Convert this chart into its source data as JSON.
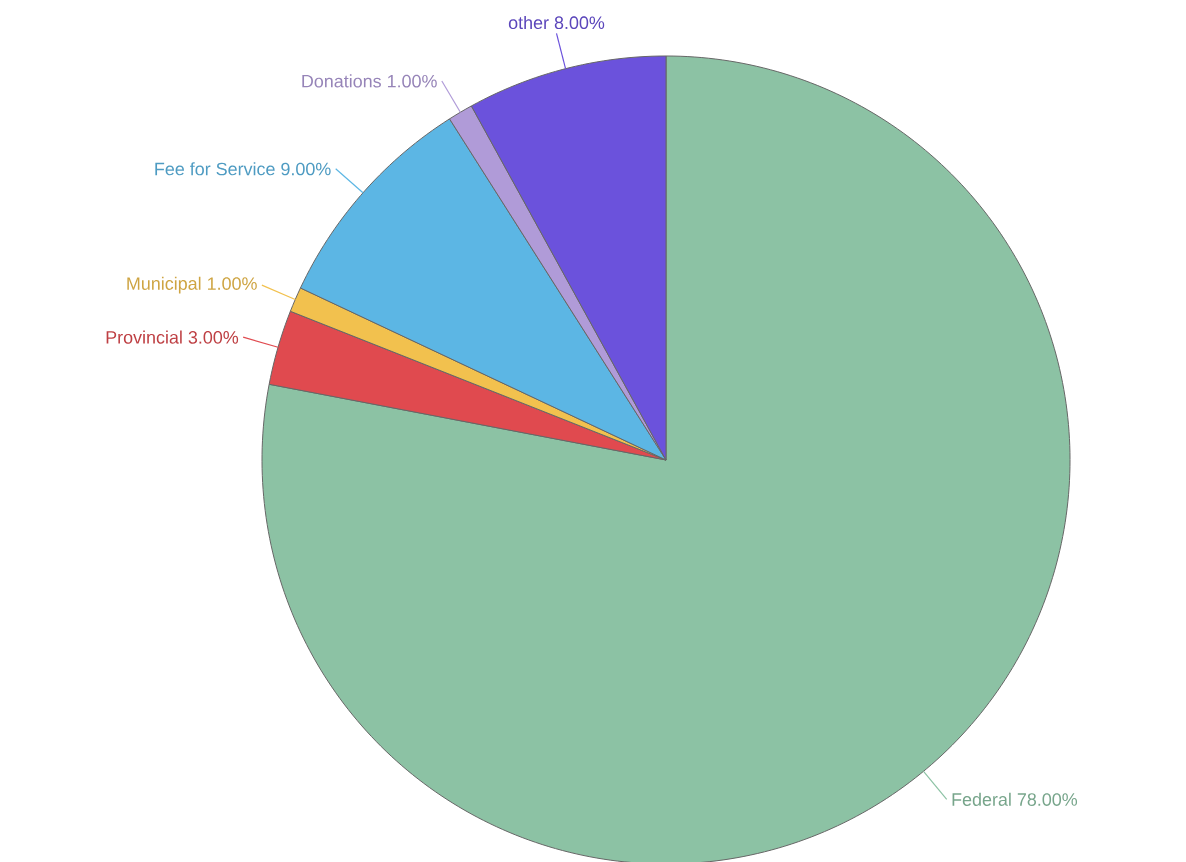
{
  "chart_data": {
    "type": "pie",
    "categories": [
      "Federal",
      "Provincial",
      "Municipal",
      "Fee for Service",
      "Donations",
      "other"
    ],
    "values": [
      78,
      3,
      1,
      9,
      1,
      8
    ],
    "value_labels": [
      "78.00%",
      "3.00%",
      "1.00%",
      "9.00%",
      "1.00%",
      "8.00%"
    ],
    "colors": [
      "#8cc2a4",
      "#e04a4f",
      "#f2c14e",
      "#5cb6e4",
      "#b09bd8",
      "#6b52dc"
    ]
  }
}
